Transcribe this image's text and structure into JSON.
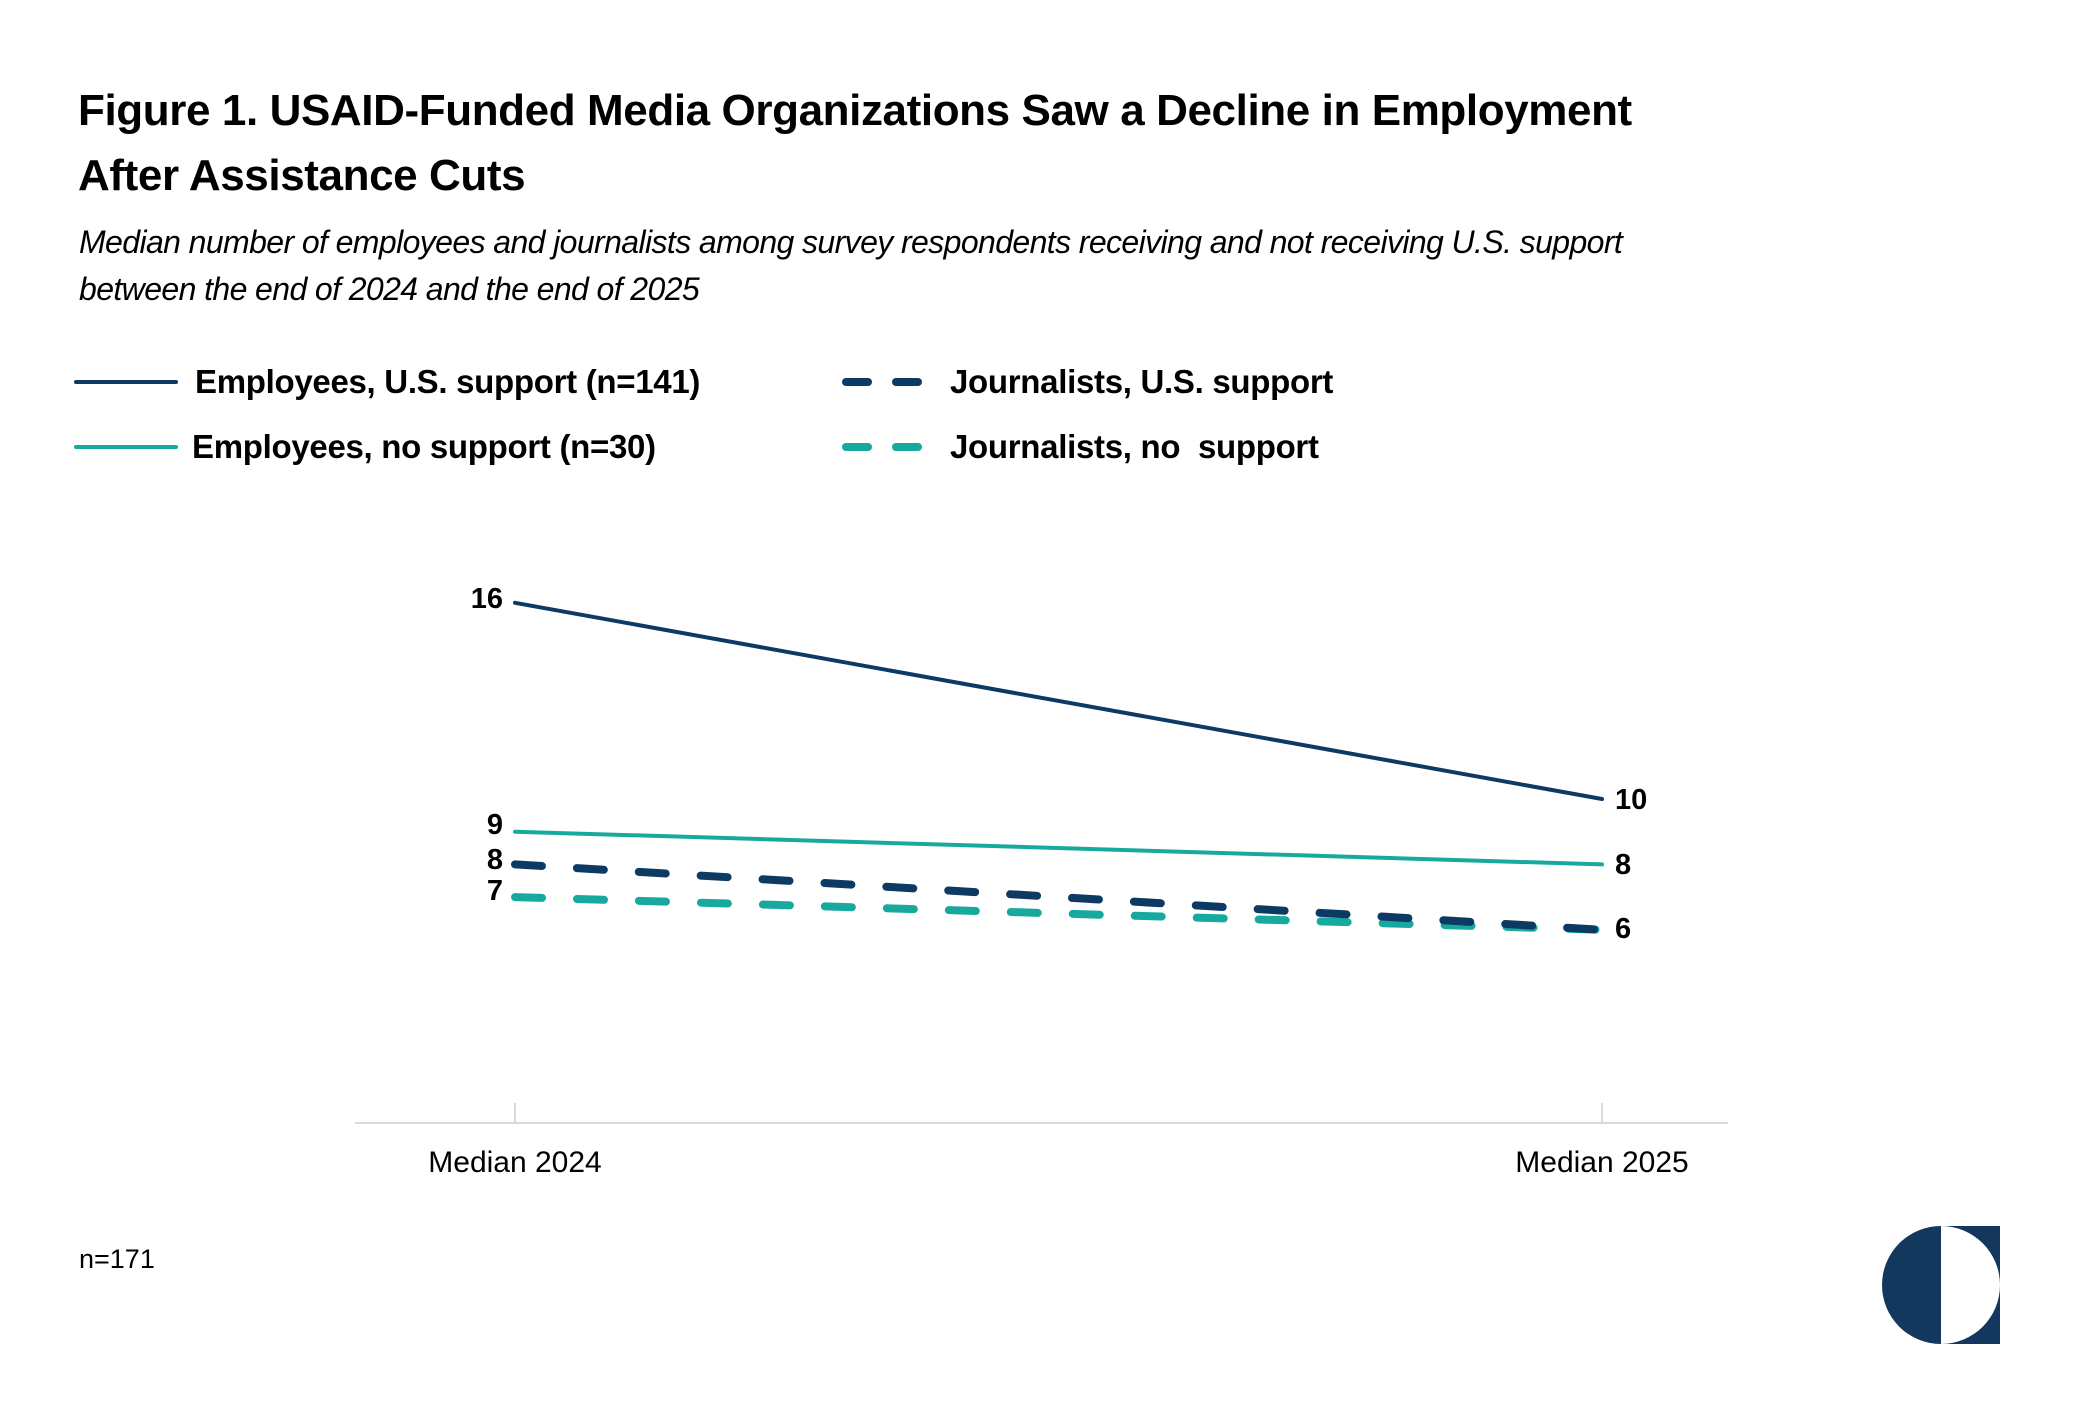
{
  "header": {
    "title_line1": "Figure 1. USAID-Funded Media Organizations Saw a Decline in Employment",
    "title_line2": "After Assistance Cuts",
    "subtitle_line1": "Median number of employees and journalists among survey respondents receiving and not receiving U.S. support",
    "subtitle_line2": "between the end of 2024 and the end of 2025"
  },
  "legend": {
    "items": [
      {
        "label": "Employees, U.S. support (n=141)",
        "series": "employees_us",
        "style": "solid",
        "color": "#0d3a63"
      },
      {
        "label": "Employees, no support (n=30)",
        "series": "employees_no",
        "style": "solid",
        "color": "#17a99e"
      },
      {
        "label": "Journalists, U.S. support",
        "series": "journalists_us",
        "style": "dashed",
        "color": "#0d3a63"
      },
      {
        "label": "Journalists, no  support",
        "series": "journalists_no",
        "style": "dashed",
        "color": "#17a99e"
      }
    ]
  },
  "chart_data": {
    "type": "line",
    "title": "Figure 1. USAID-Funded Media Organizations Saw a Decline in Employment After Assistance Cuts",
    "subtitle": "Median number of employees and journalists among survey respondents receiving and not receiving U.S. support between the end of 2024 and the end of 2025",
    "xlabel": "",
    "ylabel": "",
    "categories": [
      "Median 2024",
      "Median 2025"
    ],
    "ylim": [
      0,
      17
    ],
    "grid": false,
    "y_axis_visible": false,
    "legend_position": "top-left",
    "series": [
      {
        "name": "Employees, U.S. support (n=141)",
        "values": [
          16,
          10
        ],
        "style": "solid",
        "color": "#0d3a63",
        "labels": [
          "16",
          "10"
        ]
      },
      {
        "name": "Employees, no support (n=30)",
        "values": [
          9,
          8
        ],
        "style": "solid",
        "color": "#17a99e",
        "labels": [
          "9",
          "8"
        ]
      },
      {
        "name": "Journalists, U.S. support",
        "values": [
          8,
          6
        ],
        "style": "dashed",
        "color": "#0d3a63",
        "labels": [
          "8",
          "6"
        ]
      },
      {
        "name": "Journalists, no  support",
        "values": [
          7,
          6
        ],
        "style": "dashed",
        "color": "#17a99e",
        "labels": [
          "7",
          ""
        ]
      }
    ]
  },
  "footer": {
    "note": "n=171"
  },
  "colors": {
    "navy": "#0d3a63",
    "teal": "#17a99e",
    "axis": "#d9d9d9",
    "logo": "#14375e"
  },
  "logo": {
    "icon": "half-circle-logo-icon"
  }
}
